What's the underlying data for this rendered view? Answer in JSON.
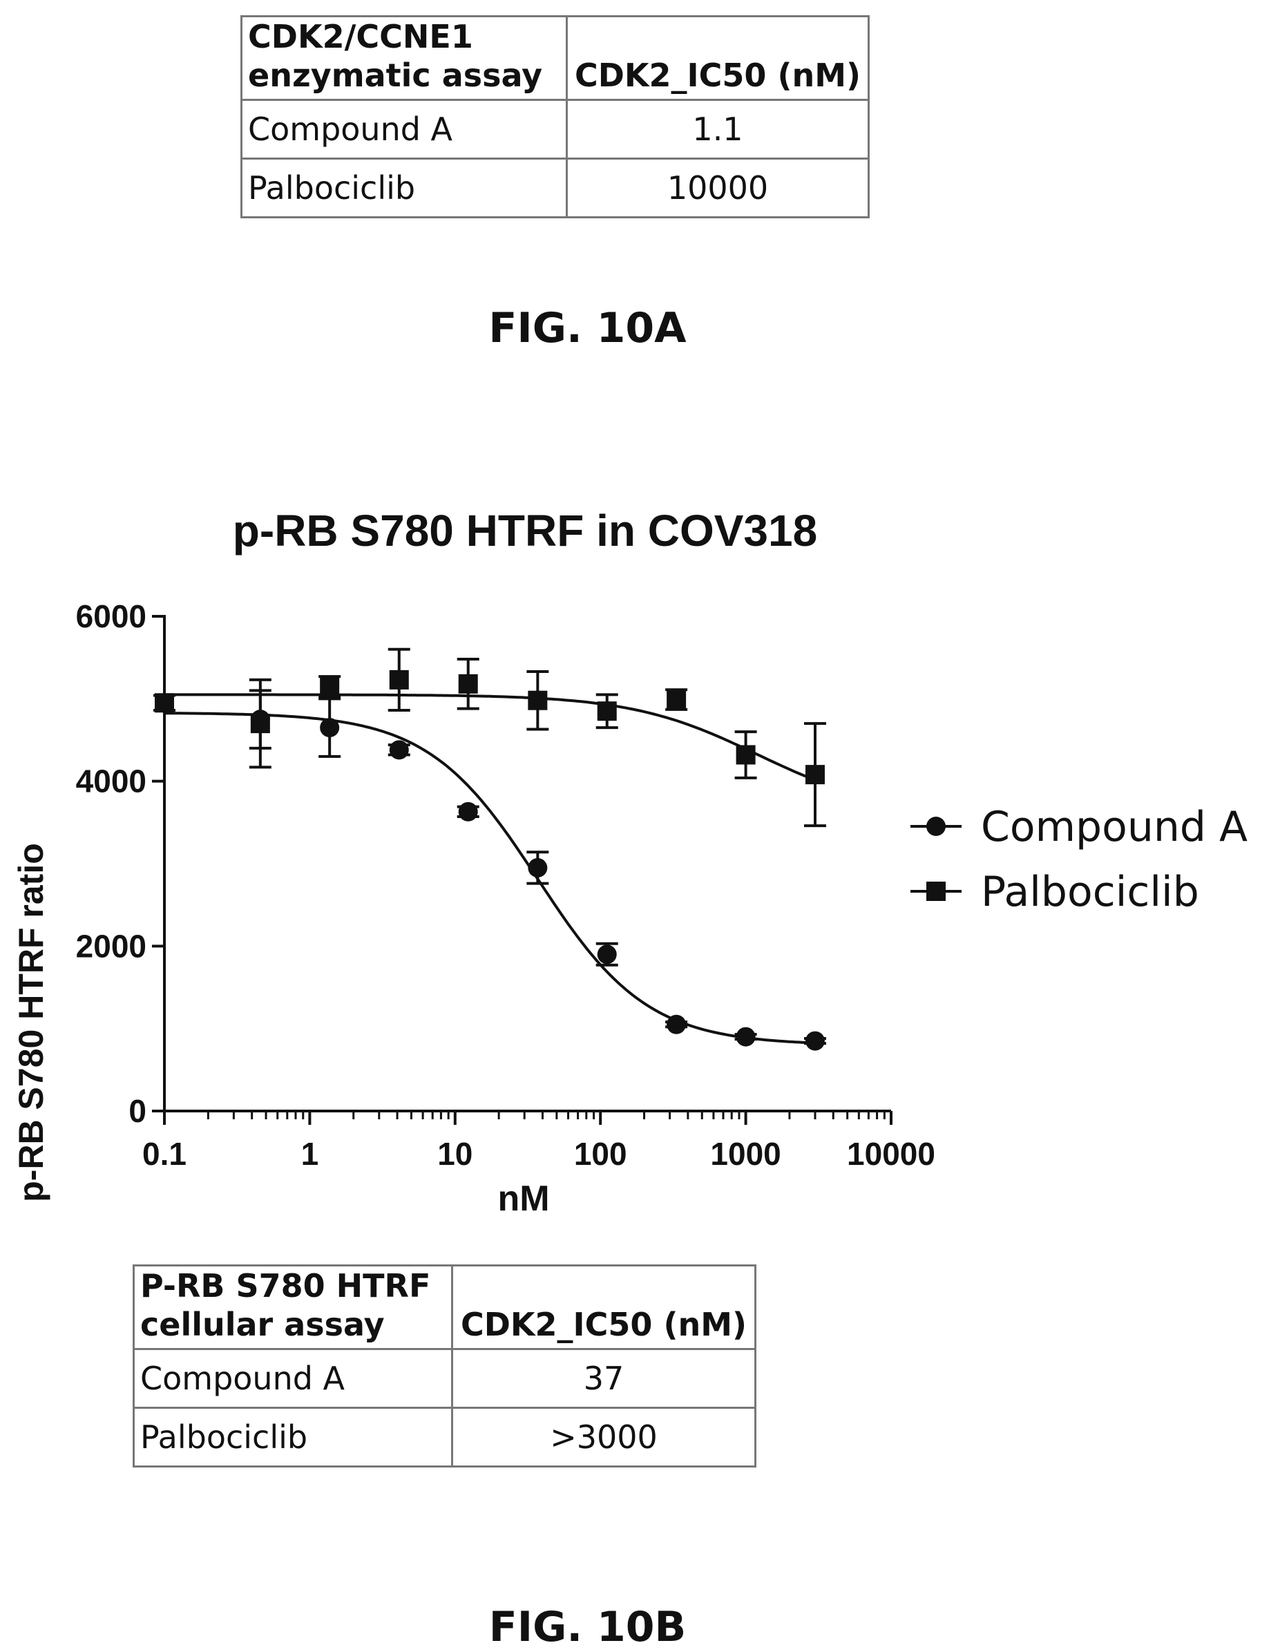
{
  "table_a": {
    "header": [
      "CDK2/CCNE1\nenzymatic assay",
      "CDK2_IC50 (nM)"
    ],
    "header_lines": [
      "CDK2/CCNE1",
      "enzymatic assay"
    ],
    "rows": [
      {
        "name": "Compound A",
        "value": "1.1"
      },
      {
        "name": "Palbociclib",
        "value": "10000"
      }
    ]
  },
  "fig_a_label": "FIG. 10A",
  "chart_data": {
    "type": "line",
    "title": "p-RB S780 HTRF in COV318",
    "xlabel": "nM",
    "ylabel": "p-RB S780 HTRF ratio",
    "xscale": "log",
    "xlim": [
      0.1,
      10000
    ],
    "ylim": [
      0,
      6000
    ],
    "xticks": [
      "0.1",
      "1",
      "10",
      "100",
      "1000",
      "10000"
    ],
    "yticks": [
      "0",
      "2000",
      "4000",
      "6000"
    ],
    "legend_position": "right",
    "series": [
      {
        "name": "Compound A",
        "marker": "circle",
        "x": [
          0.1,
          0.457,
          1.37,
          4.12,
          12.3,
          37,
          111,
          333,
          1000,
          3000
        ],
        "y": [
          4950,
          4750,
          4650,
          4380,
          3630,
          2950,
          1900,
          1050,
          900,
          850
        ],
        "err": [
          90,
          350,
          350,
          60,
          60,
          190,
          130,
          30,
          30,
          30
        ]
      },
      {
        "name": "Palbociclib",
        "marker": "square",
        "x": [
          0.1,
          0.457,
          1.37,
          4.12,
          12.3,
          37,
          111,
          333,
          1000,
          3000
        ],
        "y": [
          4950,
          4700,
          5150,
          5230,
          5180,
          4980,
          4850,
          4990,
          4320,
          4080
        ],
        "err": [
          90,
          530,
          120,
          370,
          300,
          350,
          200,
          120,
          280,
          620
        ]
      }
    ],
    "fits": {
      "Compound A": {
        "top": 4830,
        "bottom": 800,
        "ic50": 37,
        "hill": 1.15
      },
      "Palbociclib": {
        "top": 5050,
        "bottom": 3600,
        "ic50": 1200,
        "hill": 1.0
      }
    }
  },
  "table_b": {
    "header_lines": [
      "P-RB S780 HTRF",
      "cellular assay"
    ],
    "value_header": "CDK2_IC50 (nM)",
    "rows": [
      {
        "name": "Compound A",
        "value": "37"
      },
      {
        "name": "Palbociclib",
        "value": ">3000"
      }
    ]
  },
  "fig_b_label": "FIG. 10B"
}
